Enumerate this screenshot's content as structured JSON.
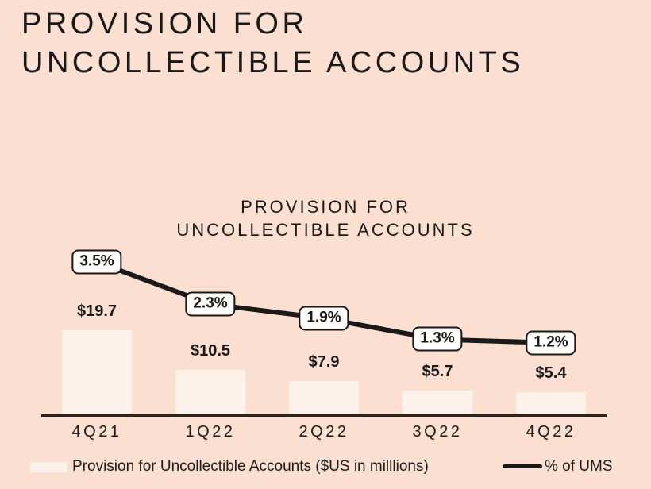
{
  "main_title": {
    "line1": "PROVISION FOR",
    "line2": "UNCOLLECTIBLE ACCOUNTS"
  },
  "chart_data": {
    "type": "bar",
    "title_line1": "PROVISION FOR",
    "title_line2": "UNCOLLECTIBLE ACCOUNTS",
    "categories": [
      "4Q21",
      "1Q22",
      "2Q22",
      "3Q22",
      "4Q22"
    ],
    "series": [
      {
        "name": "Provision for Uncollectible Accounts ($US in milllions)",
        "type": "bar",
        "values": [
          19.7,
          10.5,
          7.9,
          5.7,
          5.4
        ],
        "data_labels": [
          "$19.7",
          "$10.5",
          "$7.9",
          "$5.7",
          "$5.4"
        ],
        "color": "#fcf2ea"
      },
      {
        "name": "% of UMS",
        "type": "line",
        "values": [
          3.5,
          2.3,
          1.9,
          1.3,
          1.2
        ],
        "data_labels": [
          "3.5%",
          "2.3%",
          "1.9%",
          "1.3%",
          "1.2%"
        ],
        "color": "#191919"
      }
    ],
    "legend_position": "bottom",
    "grid": false,
    "y_axis_labels_visible": false
  },
  "colors": {
    "background": "#fbdfd0",
    "bar_fill": "#fcf2ea",
    "line": "#191919",
    "marker_box_fill": "#fffdfc",
    "marker_box_border": "#191919",
    "text": "#191919",
    "axis_line": "#262626"
  }
}
